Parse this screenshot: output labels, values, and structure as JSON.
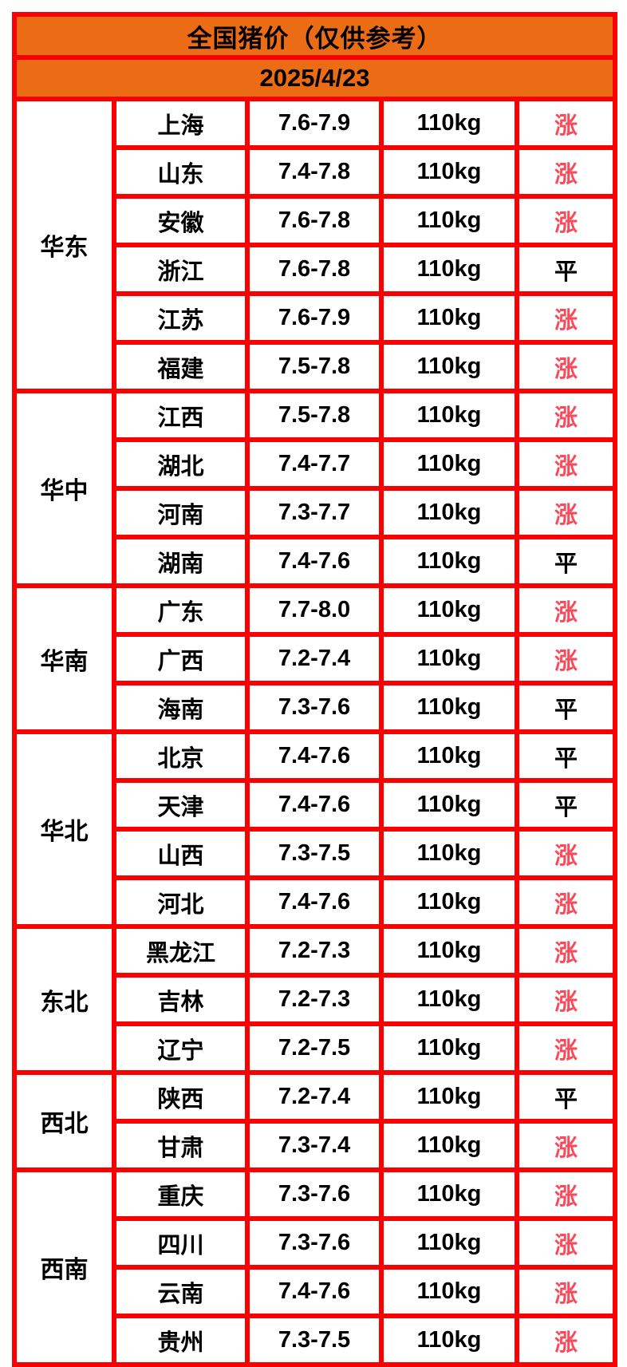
{
  "page": {
    "title": "全国猪价（仅供参考）",
    "date": "2025/4/23"
  },
  "colors": {
    "header_bg": "#ec6b15",
    "border": "#fb0000",
    "trend_up": "#fa4a59",
    "trend_flat": "#000000"
  },
  "chart_data": {
    "type": "table",
    "title": "全国猪价（仅供参考）",
    "date": "2025/4/23",
    "regions": [
      {
        "name": "华东",
        "rows": [
          {
            "province": "上海",
            "price": "7.6-7.9",
            "weight": "110kg",
            "status": "涨",
            "trend": "up"
          },
          {
            "province": "山东",
            "price": "7.4-7.8",
            "weight": "110kg",
            "status": "涨",
            "trend": "up"
          },
          {
            "province": "安徽",
            "price": "7.6-7.8",
            "weight": "110kg",
            "status": "涨",
            "trend": "up"
          },
          {
            "province": "浙江",
            "price": "7.6-7.8",
            "weight": "110kg",
            "status": "平",
            "trend": "flat"
          },
          {
            "province": "江苏",
            "price": "7.6-7.9",
            "weight": "110kg",
            "status": "涨",
            "trend": "up"
          },
          {
            "province": "福建",
            "price": "7.5-7.8",
            "weight": "110kg",
            "status": "涨",
            "trend": "up"
          }
        ]
      },
      {
        "name": "华中",
        "rows": [
          {
            "province": "江西",
            "price": "7.5-7.8",
            "weight": "110kg",
            "status": "涨",
            "trend": "up"
          },
          {
            "province": "湖北",
            "price": "7.4-7.7",
            "weight": "110kg",
            "status": "涨",
            "trend": "up"
          },
          {
            "province": "河南",
            "price": "7.3-7.7",
            "weight": "110kg",
            "status": "涨",
            "trend": "up"
          },
          {
            "province": "湖南",
            "price": "7.4-7.6",
            "weight": "110kg",
            "status": "平",
            "trend": "flat"
          }
        ]
      },
      {
        "name": "华南",
        "rows": [
          {
            "province": "广东",
            "price": "7.7-8.0",
            "weight": "110kg",
            "status": "涨",
            "trend": "up"
          },
          {
            "province": "广西",
            "price": "7.2-7.4",
            "weight": "110kg",
            "status": "涨",
            "trend": "up"
          },
          {
            "province": "海南",
            "price": "7.3-7.6",
            "weight": "110kg",
            "status": "平",
            "trend": "flat"
          }
        ]
      },
      {
        "name": "华北",
        "rows": [
          {
            "province": "北京",
            "price": "7.4-7.6",
            "weight": "110kg",
            "status": "平",
            "trend": "flat"
          },
          {
            "province": "天津",
            "price": "7.4-7.6",
            "weight": "110kg",
            "status": "平",
            "trend": "flat"
          },
          {
            "province": "山西",
            "price": "7.3-7.5",
            "weight": "110kg",
            "status": "涨",
            "trend": "up"
          },
          {
            "province": "河北",
            "price": "7.4-7.6",
            "weight": "110kg",
            "status": "涨",
            "trend": "up"
          }
        ]
      },
      {
        "name": "东北",
        "rows": [
          {
            "province": "黑龙江",
            "price": "7.2-7.3",
            "weight": "110kg",
            "status": "涨",
            "trend": "up"
          },
          {
            "province": "吉林",
            "price": "7.2-7.3",
            "weight": "110kg",
            "status": "涨",
            "trend": "up"
          },
          {
            "province": "辽宁",
            "price": "7.2-7.5",
            "weight": "110kg",
            "status": "涨",
            "trend": "up"
          }
        ]
      },
      {
        "name": "西北",
        "rows": [
          {
            "province": "陕西",
            "price": "7.2-7.4",
            "weight": "110kg",
            "status": "平",
            "trend": "flat"
          },
          {
            "province": "甘肃",
            "price": "7.3-7.4",
            "weight": "110kg",
            "status": "涨",
            "trend": "up"
          }
        ]
      },
      {
        "name": "西南",
        "rows": [
          {
            "province": "重庆",
            "price": "7.3-7.6",
            "weight": "110kg",
            "status": "涨",
            "trend": "up"
          },
          {
            "province": "四川",
            "price": "7.3-7.6",
            "weight": "110kg",
            "status": "涨",
            "trend": "up"
          },
          {
            "province": "云南",
            "price": "7.4-7.6",
            "weight": "110kg",
            "status": "涨",
            "trend": "up"
          },
          {
            "province": "贵州",
            "price": "7.3-7.5",
            "weight": "110kg",
            "status": "涨",
            "trend": "up"
          }
        ]
      }
    ]
  }
}
